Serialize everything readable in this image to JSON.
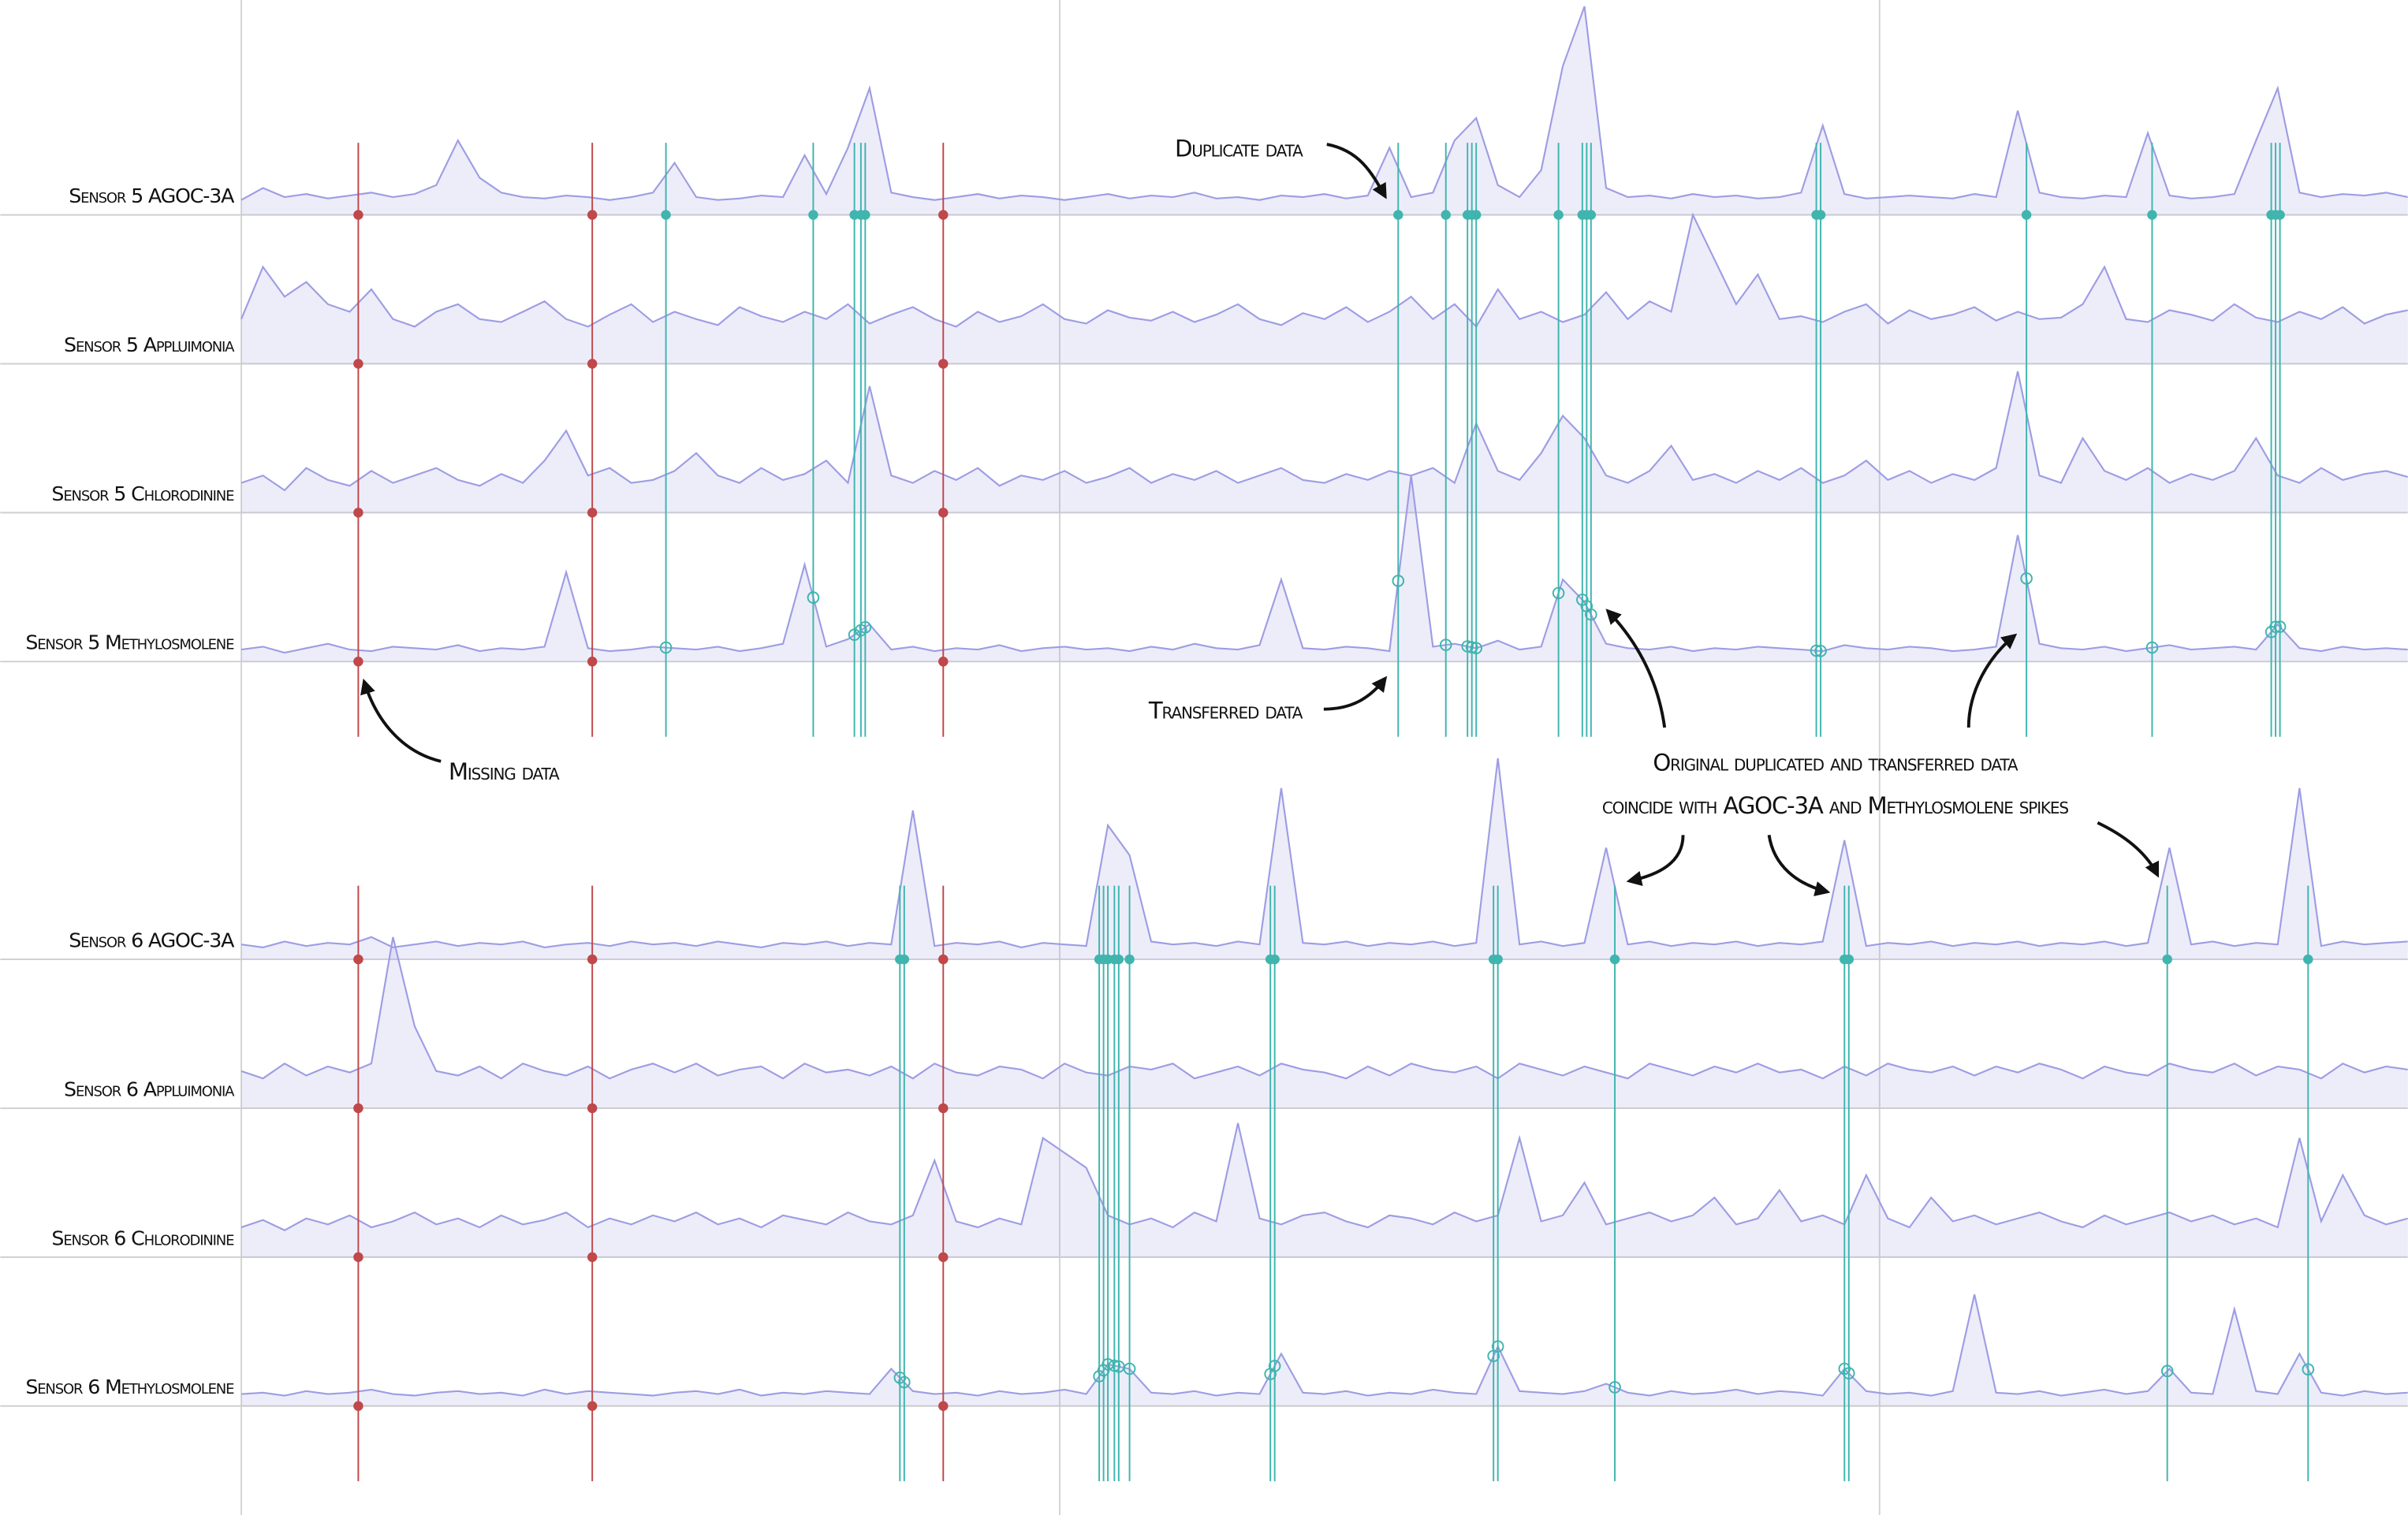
{
  "chart_data": [
    {
      "type": "line",
      "x": [
        0,
        1,
        2,
        3,
        4,
        5,
        6,
        7,
        8,
        9,
        10,
        11,
        12,
        13,
        14,
        15,
        16,
        17,
        18,
        19,
        20,
        21,
        22,
        23,
        24,
        25,
        26,
        27,
        28,
        29,
        30,
        31,
        32,
        33,
        34,
        35,
        36,
        37,
        38,
        39,
        40,
        41,
        42,
        43,
        44,
        45,
        46,
        47,
        48,
        49,
        50,
        51,
        52,
        53,
        54,
        55,
        56,
        57,
        58,
        59,
        60,
        61,
        62,
        63,
        64,
        65,
        66,
        67,
        68,
        69,
        70,
        71,
        72,
        73,
        74,
        75,
        76,
        77,
        78,
        79,
        80,
        81,
        82,
        83,
        84,
        85,
        86,
        87,
        88,
        89,
        90,
        91,
        92,
        93,
        94,
        95,
        96,
        97,
        98,
        99,
        100
      ],
      "xlim": [
        0,
        100
      ],
      "ylim": [
        0,
        100
      ],
      "series": [
        {
          "name": "Sensor 5 AGOC-3A",
          "color": "#9d9de4",
          "values": [
            10,
            18,
            12,
            14,
            11,
            13,
            15,
            12,
            14,
            20,
            50,
            25,
            15,
            12,
            11,
            13,
            12,
            10,
            12,
            15,
            35,
            12,
            10,
            11,
            13,
            12,
            40,
            14,
            45,
            85,
            15,
            12,
            10,
            12,
            14,
            11,
            13,
            12,
            10,
            12,
            14,
            11,
            13,
            12,
            15,
            11,
            12,
            10,
            13,
            12,
            14,
            11,
            13,
            45,
            12,
            15,
            50,
            65,
            20,
            12,
            30,
            100,
            140,
            18,
            12,
            13,
            11,
            14,
            12,
            13,
            11,
            12,
            15,
            60,
            14,
            11,
            12,
            13,
            12,
            11,
            14,
            12,
            70,
            15,
            12,
            11,
            13,
            12,
            55,
            13,
            11,
            12,
            14,
            50,
            85,
            15,
            12,
            14,
            13,
            15,
            12
          ]
        },
        {
          "name": "Sensor 5 Appluimonia",
          "color": "#9d9de4",
          "values": [
            30,
            65,
            45,
            55,
            40,
            35,
            50,
            30,
            25,
            35,
            40,
            30,
            28,
            35,
            42,
            30,
            25,
            33,
            40,
            28,
            35,
            30,
            26,
            38,
            32,
            28,
            35,
            30,
            40,
            27,
            33,
            38,
            30,
            25,
            35,
            28,
            32,
            40,
            30,
            27,
            36,
            31,
            29,
            35,
            28,
            33,
            40,
            30,
            26,
            34,
            30,
            38,
            28,
            35,
            45,
            30,
            40,
            25,
            50,
            30,
            35,
            28,
            33,
            48,
            30,
            42,
            35,
            100,
            70,
            40,
            60,
            30,
            32,
            28,
            35,
            40,
            27,
            36,
            30,
            33,
            38,
            29,
            35,
            30,
            31,
            40,
            65,
            30,
            28,
            36,
            33,
            29,
            40,
            31,
            28,
            35,
            30,
            38,
            27,
            33,
            36
          ]
        },
        {
          "name": "Sensor 5 Chlorodinine",
          "color": "#9d9de4",
          "values": [
            20,
            25,
            15,
            30,
            22,
            18,
            28,
            20,
            25,
            30,
            22,
            18,
            26,
            20,
            35,
            55,
            25,
            30,
            20,
            22,
            28,
            40,
            25,
            20,
            30,
            22,
            26,
            35,
            20,
            85,
            25,
            20,
            28,
            22,
            30,
            18,
            25,
            22,
            28,
            20,
            24,
            30,
            20,
            26,
            22,
            28,
            20,
            25,
            30,
            22,
            20,
            26,
            22,
            28,
            25,
            30,
            20,
            60,
            28,
            22,
            40,
            65,
            50,
            25,
            20,
            28,
            45,
            22,
            26,
            20,
            28,
            22,
            30,
            20,
            25,
            35,
            22,
            28,
            20,
            26,
            22,
            30,
            95,
            25,
            20,
            50,
            28,
            22,
            30,
            20,
            26,
            22,
            28,
            50,
            25,
            20,
            30,
            22,
            26,
            28,
            24
          ]
        },
        {
          "name": "Sensor 5 Methylosmolene",
          "color": "#9d9de4",
          "values": [
            8,
            10,
            6,
            9,
            12,
            8,
            7,
            10,
            9,
            8,
            11,
            7,
            9,
            8,
            10,
            60,
            9,
            7,
            8,
            10,
            9,
            8,
            10,
            7,
            9,
            12,
            65,
            10,
            15,
            25,
            8,
            10,
            7,
            9,
            8,
            11,
            7,
            9,
            10,
            8,
            9,
            7,
            10,
            8,
            12,
            9,
            8,
            11,
            55,
            9,
            8,
            10,
            9,
            7,
            125,
            10,
            12,
            9,
            14,
            8,
            10,
            55,
            40,
            12,
            9,
            8,
            10,
            7,
            9,
            8,
            10,
            9,
            8,
            7,
            11,
            9,
            8,
            10,
            9,
            7,
            8,
            10,
            85,
            12,
            9,
            8,
            10,
            7,
            9,
            11,
            8,
            9,
            10,
            8,
            25,
            9,
            7,
            10,
            8,
            9,
            8
          ]
        }
      ],
      "missing_data": [
        5.4,
        16.2,
        32.4
      ],
      "missing_color": "#c0474a",
      "events": [
        19.6,
        26.4,
        28.3,
        28.6,
        28.8,
        53.4,
        55.6,
        56.6,
        56.8,
        57.0,
        60.8,
        61.9,
        62.1,
        62.3,
        72.7,
        72.9,
        82.4,
        88.2,
        93.7,
        93.9,
        94.1
      ],
      "event_color": "#3fb5ae"
    },
    {
      "type": "line",
      "x": [
        0,
        1,
        2,
        3,
        4,
        5,
        6,
        7,
        8,
        9,
        10,
        11,
        12,
        13,
        14,
        15,
        16,
        17,
        18,
        19,
        20,
        21,
        22,
        23,
        24,
        25,
        26,
        27,
        28,
        29,
        30,
        31,
        32,
        33,
        34,
        35,
        36,
        37,
        38,
        39,
        40,
        41,
        42,
        43,
        44,
        45,
        46,
        47,
        48,
        49,
        50,
        51,
        52,
        53,
        54,
        55,
        56,
        57,
        58,
        59,
        60,
        61,
        62,
        63,
        64,
        65,
        66,
        67,
        68,
        69,
        70,
        71,
        72,
        73,
        74,
        75,
        76,
        77,
        78,
        79,
        80,
        81,
        82,
        83,
        84,
        85,
        86,
        87,
        88,
        89,
        90,
        91,
        92,
        93,
        94,
        95,
        96,
        97,
        98,
        99,
        100
      ],
      "xlim": [
        0,
        100
      ],
      "ylim": [
        0,
        100
      ],
      "series": [
        {
          "name": "Sensor 6 AGOC-3A",
          "color": "#9d9de4",
          "values": [
            10,
            8,
            12,
            9,
            11,
            10,
            15,
            8,
            10,
            12,
            9,
            11,
            10,
            12,
            8,
            10,
            11,
            9,
            12,
            10,
            11,
            9,
            12,
            10,
            8,
            11,
            10,
            12,
            9,
            11,
            10,
            100,
            9,
            11,
            10,
            12,
            8,
            11,
            10,
            9,
            90,
            70,
            12,
            10,
            11,
            9,
            12,
            10,
            115,
            11,
            10,
            12,
            9,
            11,
            10,
            12,
            9,
            11,
            135,
            10,
            12,
            9,
            11,
            75,
            10,
            12,
            9,
            11,
            10,
            12,
            9,
            11,
            10,
            12,
            80,
            9,
            11,
            10,
            12,
            9,
            11,
            10,
            12,
            9,
            11,
            10,
            12,
            9,
            11,
            75,
            10,
            12,
            9,
            11,
            10,
            115,
            9,
            12,
            10,
            11,
            12
          ]
        },
        {
          "name": "Sensor 6 Appluimonia",
          "color": "#9d9de4",
          "values": [
            25,
            20,
            30,
            22,
            28,
            24,
            30,
            115,
            55,
            25,
            22,
            28,
            20,
            30,
            25,
            22,
            28,
            20,
            26,
            30,
            24,
            30,
            22,
            26,
            28,
            20,
            30,
            24,
            26,
            22,
            28,
            20,
            30,
            24,
            22,
            28,
            26,
            20,
            30,
            24,
            22,
            28,
            26,
            30,
            20,
            24,
            28,
            22,
            30,
            26,
            24,
            20,
            28,
            22,
            30,
            26,
            24,
            28,
            20,
            30,
            26,
            22,
            28,
            24,
            20,
            30,
            26,
            22,
            28,
            24,
            30,
            24,
            26,
            20,
            28,
            22,
            30,
            26,
            24,
            28,
            22,
            28,
            24,
            30,
            26,
            20,
            28,
            24,
            22,
            30,
            26,
            24,
            30,
            22,
            28,
            26,
            20,
            30,
            24,
            28,
            26
          ]
        },
        {
          "name": "Sensor 6 Chlorodinine",
          "color": "#9d9de4",
          "values": [
            20,
            25,
            18,
            26,
            22,
            28,
            20,
            24,
            30,
            22,
            26,
            20,
            28,
            22,
            25,
            30,
            20,
            26,
            22,
            28,
            24,
            30,
            22,
            26,
            20,
            28,
            25,
            22,
            30,
            24,
            22,
            28,
            65,
            24,
            20,
            26,
            22,
            80,
            70,
            60,
            28,
            22,
            26,
            20,
            30,
            24,
            90,
            26,
            22,
            28,
            30,
            24,
            20,
            28,
            26,
            22,
            30,
            24,
            28,
            80,
            24,
            28,
            50,
            22,
            26,
            30,
            24,
            28,
            40,
            22,
            26,
            45,
            24,
            28,
            22,
            55,
            26,
            20,
            40,
            24,
            28,
            22,
            26,
            30,
            24,
            20,
            28,
            22,
            26,
            30,
            24,
            28,
            22,
            26,
            20,
            80,
            24,
            55,
            28,
            22,
            26
          ]
        },
        {
          "name": "Sensor 6 Methylosmolene",
          "color": "#9d9de4",
          "values": [
            8,
            9,
            7,
            10,
            8,
            9,
            11,
            8,
            7,
            9,
            10,
            8,
            9,
            7,
            11,
            8,
            10,
            9,
            8,
            7,
            9,
            10,
            8,
            11,
            7,
            9,
            8,
            10,
            9,
            8,
            25,
            10,
            8,
            9,
            7,
            10,
            8,
            9,
            11,
            8,
            28,
            25,
            9,
            8,
            10,
            7,
            9,
            8,
            35,
            9,
            8,
            10,
            7,
            9,
            8,
            11,
            9,
            8,
            40,
            10,
            9,
            8,
            10,
            15,
            9,
            7,
            10,
            8,
            9,
            11,
            8,
            10,
            9,
            7,
            25,
            10,
            8,
            9,
            7,
            10,
            75,
            9,
            8,
            10,
            7,
            9,
            11,
            8,
            10,
            25,
            9,
            8,
            65,
            10,
            8,
            35,
            9,
            7,
            10,
            8,
            9
          ]
        }
      ],
      "missing_data": [
        5.4,
        16.2,
        32.4
      ],
      "missing_color": "#c0474a",
      "events": [
        30.4,
        30.6,
        39.6,
        39.8,
        40.0,
        40.3,
        40.5,
        41.0,
        47.5,
        47.7,
        57.8,
        58.0,
        63.4,
        74.0,
        74.2,
        88.9,
        95.4
      ],
      "event_color": "#3fb5ae"
    }
  ],
  "annotations": {
    "duplicate": "Duplicate data",
    "transferred": "Transferred data",
    "missing": "Missing data",
    "coincide": [
      "Original duplicated and transferred  data",
      "coincide with AGOC-3A and Methylosmolene spikes"
    ]
  }
}
